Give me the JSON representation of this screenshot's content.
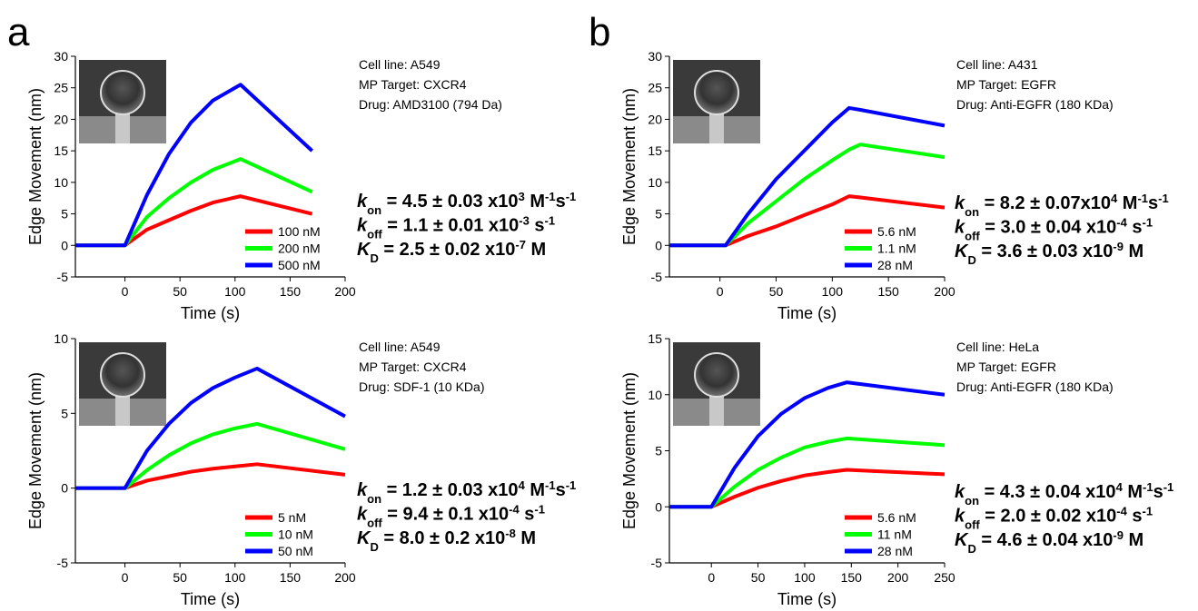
{
  "panel_labels": [
    "a",
    "b"
  ],
  "chart_data": [
    {
      "type": "line",
      "xlabel": "Time (s)",
      "ylabel": "Edge Movement (nm)",
      "xlim": [
        -45,
        200
      ],
      "xticks": [
        0,
        50,
        100,
        150,
        200
      ],
      "ylim": [
        -5,
        30
      ],
      "yticks": [
        -5,
        0,
        5,
        10,
        15,
        20,
        25,
        30
      ],
      "legend": "lower right",
      "x": [
        -45,
        0,
        20,
        40,
        60,
        80,
        105,
        170
      ],
      "series": [
        {
          "name": "100 nM",
          "color": "#ff0000",
          "values": [
            0,
            0,
            2.5,
            4,
            5.5,
            6.8,
            7.8,
            5
          ]
        },
        {
          "name": "200 nM",
          "color": "#00ff00",
          "values": [
            0,
            0,
            4.5,
            7.5,
            10,
            12,
            13.7,
            8.5
          ]
        },
        {
          "name": "500 nM",
          "color": "#0000ff",
          "values": [
            0,
            0,
            8,
            14.5,
            19.5,
            23,
            25.5,
            15
          ]
        }
      ],
      "annotations": [
        "Cell line: A549",
        "MP Target: CXCR4",
        "Drug: AMD3100 (794 Da)"
      ],
      "constants": [
        [
          {
            "text": "k",
            "style": "italic"
          },
          {
            "text": "on",
            "style": "sub"
          },
          {
            "text": " = 4.5 ± 0.03 x10",
            "style": "normal"
          },
          {
            "text": "3",
            "style": "sup"
          },
          {
            "text": " M",
            "style": "normal"
          },
          {
            "text": "-1",
            "style": "sup"
          },
          {
            "text": "s",
            "style": "normal"
          },
          {
            "text": "-1",
            "style": "sup"
          }
        ],
        [
          {
            "text": "k",
            "style": "italic"
          },
          {
            "text": "off",
            "style": "sub"
          },
          {
            "text": " = 1.1 ± 0.01 x10",
            "style": "normal"
          },
          {
            "text": "-3",
            "style": "sup"
          },
          {
            "text": " s",
            "style": "normal"
          },
          {
            "text": "-1",
            "style": "sup"
          }
        ],
        [
          {
            "text": "K",
            "style": "italic"
          },
          {
            "text": "D",
            "style": "sub"
          },
          {
            "text": " = 2.5 ± 0.02 x10",
            "style": "normal"
          },
          {
            "text": "-7",
            "style": "sup"
          },
          {
            "text": " M",
            "style": "normal"
          }
        ]
      ]
    },
    {
      "type": "line",
      "xlabel": "Time (s)",
      "ylabel": "Edge Movement (nm)",
      "xlim": [
        -45,
        200
      ],
      "xticks": [
        0,
        50,
        100,
        150,
        200
      ],
      "ylim": [
        -5,
        10
      ],
      "yticks": [
        -5,
        0,
        5,
        10
      ],
      "legend": "lower right",
      "x": [
        -45,
        0,
        20,
        40,
        60,
        80,
        100,
        120,
        200
      ],
      "series": [
        {
          "name": "5 nM",
          "color": "#ff0000",
          "values": [
            0,
            0,
            0.5,
            0.8,
            1.1,
            1.3,
            1.45,
            1.6,
            0.9
          ]
        },
        {
          "name": "10 nM",
          "color": "#00ff00",
          "values": [
            0,
            0,
            1.2,
            2.2,
            3,
            3.6,
            4,
            4.3,
            2.6
          ]
        },
        {
          "name": "50 nM",
          "color": "#0000ff",
          "values": [
            0,
            0,
            2.5,
            4.3,
            5.7,
            6.7,
            7.4,
            8,
            4.8
          ]
        }
      ],
      "annotations": [
        "Cell line: A549",
        "MP Target: CXCR4",
        "Drug: SDF-1 (10 KDa)"
      ],
      "constants": [
        [
          {
            "text": "k",
            "style": "italic"
          },
          {
            "text": "on",
            "style": "sub"
          },
          {
            "text": " = 1.2 ± 0.03 x10",
            "style": "normal"
          },
          {
            "text": "4",
            "style": "sup"
          },
          {
            "text": " M",
            "style": "normal"
          },
          {
            "text": "-1",
            "style": "sup"
          },
          {
            "text": "s",
            "style": "normal"
          },
          {
            "text": "-1",
            "style": "sup"
          }
        ],
        [
          {
            "text": "k",
            "style": "italic"
          },
          {
            "text": "off",
            "style": "sub"
          },
          {
            "text": " = 9.4 ± 0.1 x10",
            "style": "normal"
          },
          {
            "text": "-4",
            "style": "sup"
          },
          {
            "text": " s",
            "style": "normal"
          },
          {
            "text": "-1",
            "style": "sup"
          }
        ],
        [
          {
            "text": "K",
            "style": "italic"
          },
          {
            "text": "D",
            "style": "sub"
          },
          {
            "text": " = 8.0 ± 0.2 x10",
            "style": "normal"
          },
          {
            "text": "-8",
            "style": "sup"
          },
          {
            "text": " M",
            "style": "normal"
          }
        ]
      ]
    },
    {
      "type": "line",
      "xlabel": "Time (s)",
      "ylabel": "Edge Movement (nm)",
      "xlim": [
        -45,
        200
      ],
      "xticks": [
        0,
        50,
        100,
        150,
        200
      ],
      "ylim": [
        -5,
        30
      ],
      "yticks": [
        -5,
        0,
        5,
        10,
        15,
        20,
        25,
        30
      ],
      "legend": "lower right",
      "x": [
        -45,
        5,
        25,
        50,
        75,
        100,
        115,
        125,
        200
      ],
      "series": [
        {
          "name": "5.6 nM",
          "color": "#ff0000",
          "values": [
            0,
            0,
            1.5,
            3,
            4.8,
            6.5,
            7.8,
            7.6,
            6
          ]
        },
        {
          "name": "1.1 nM",
          "color": "#00ff00",
          "values": [
            0,
            0,
            3.5,
            7,
            10.5,
            13.5,
            15.2,
            16,
            14
          ]
        },
        {
          "name": "28 nM",
          "color": "#0000ff",
          "values": [
            0,
            0,
            5,
            10.5,
            15,
            19.5,
            21.8,
            21.5,
            19
          ]
        }
      ],
      "annotations": [
        "Cell line: A431",
        "MP Target: EGFR",
        "Drug: Anti-EGFR (180 KDa)"
      ],
      "constants": [
        [
          {
            "text": "k",
            "style": "italic"
          },
          {
            "text": "on",
            "style": "sub"
          },
          {
            "text": " = 8.2 ± 0.07x10",
            "style": "normal"
          },
          {
            "text": "4",
            "style": "sup"
          },
          {
            "text": " M",
            "style": "normal"
          },
          {
            "text": "-1",
            "style": "sup"
          },
          {
            "text": "s",
            "style": "normal"
          },
          {
            "text": "-1",
            "style": "sup"
          }
        ],
        [
          {
            "text": "k",
            "style": "italic"
          },
          {
            "text": "off",
            "style": "sub"
          },
          {
            "text": " = 3.0 ± 0.04 x10",
            "style": "normal"
          },
          {
            "text": "-4",
            "style": "sup"
          },
          {
            "text": " s",
            "style": "normal"
          },
          {
            "text": "-1",
            "style": "sup"
          }
        ],
        [
          {
            "text": "K",
            "style": "italic"
          },
          {
            "text": "D",
            "style": "sub"
          },
          {
            "text": " = 3.6 ± 0.03 x10",
            "style": "normal"
          },
          {
            "text": "-9",
            "style": "sup"
          },
          {
            "text": " M",
            "style": "normal"
          }
        ]
      ]
    },
    {
      "type": "line",
      "xlabel": "Time (s)",
      "ylabel": "Edge Movement (nm)",
      "xlim": [
        -45,
        250
      ],
      "xticks": [
        0,
        50,
        100,
        150,
        200,
        250
      ],
      "ylim": [
        -5,
        15
      ],
      "yticks": [
        -5,
        0,
        5,
        10,
        15
      ],
      "legend": "lower right",
      "x": [
        -45,
        0,
        25,
        50,
        75,
        100,
        125,
        145,
        250
      ],
      "series": [
        {
          "name": "5.6 nM",
          "color": "#ff0000",
          "values": [
            0,
            0,
            0.9,
            1.7,
            2.3,
            2.8,
            3.1,
            3.3,
            2.9
          ]
        },
        {
          "name": "11 nM",
          "color": "#00ff00",
          "values": [
            0,
            0,
            1.8,
            3.3,
            4.4,
            5.3,
            5.8,
            6.1,
            5.5
          ]
        },
        {
          "name": "28 nM",
          "color": "#0000ff",
          "values": [
            0,
            0,
            3.5,
            6.3,
            8.3,
            9.7,
            10.6,
            11.1,
            10
          ]
        }
      ],
      "annotations": [
        "Cell line: HeLa",
        "MP Target: EGFR",
        "Drug: Anti-EGFR (180 KDa)"
      ],
      "constants": [
        [
          {
            "text": "k",
            "style": "italic"
          },
          {
            "text": "on",
            "style": "sub"
          },
          {
            "text": " = 4.3 ± 0.04 x10",
            "style": "normal"
          },
          {
            "text": "4",
            "style": "sup"
          },
          {
            "text": " M",
            "style": "normal"
          },
          {
            "text": "-1",
            "style": "sup"
          },
          {
            "text": "s",
            "style": "normal"
          },
          {
            "text": "-1",
            "style": "sup"
          }
        ],
        [
          {
            "text": "k",
            "style": "italic"
          },
          {
            "text": "off",
            "style": "sub"
          },
          {
            "text": " = 2.0 ± 0.02 x10",
            "style": "normal"
          },
          {
            "text": "-4",
            "style": "sup"
          },
          {
            "text": " s",
            "style": "normal"
          },
          {
            "text": "-1",
            "style": "sup"
          }
        ],
        [
          {
            "text": "K",
            "style": "italic"
          },
          {
            "text": "D",
            "style": "sub"
          },
          {
            "text": " = 4.6 ± 0.04 x10",
            "style": "normal"
          },
          {
            "text": "-9",
            "style": "sup"
          },
          {
            "text": " M",
            "style": "normal"
          }
        ]
      ]
    }
  ]
}
